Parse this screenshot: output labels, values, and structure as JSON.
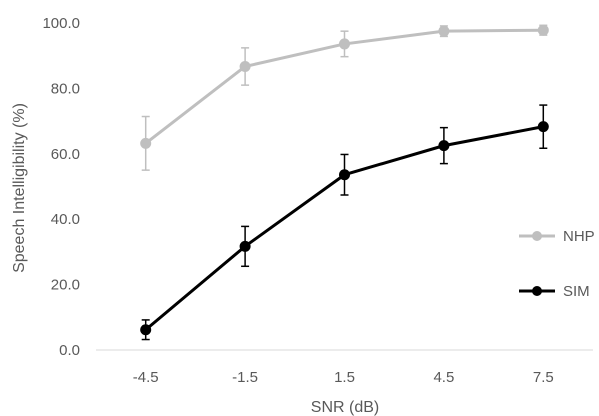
{
  "chart_data": {
    "type": "line",
    "title": "",
    "xlabel": "SNR (dB)",
    "ylabel": "Speech Intelligibility (%)",
    "categories": [
      "-4.5",
      "-1.5",
      "1.5",
      "4.5",
      "7.5"
    ],
    "ylim": [
      0,
      100
    ],
    "y_ticks": [
      "0.0",
      "20.0",
      "40.0",
      "60.0",
      "80.0",
      "100.0"
    ],
    "grid": false,
    "legend_position": "right",
    "series": [
      {
        "name": "NHP",
        "color": "#bfbfbf",
        "values": [
          63.2,
          86.7,
          93.6,
          97.5,
          97.8
        ],
        "errors": [
          8.2,
          5.7,
          3.9,
          1.6,
          1.5
        ]
      },
      {
        "name": "SIM",
        "color": "#000000",
        "values": [
          6.2,
          31.7,
          53.6,
          62.5,
          68.3
        ],
        "errors": [
          3.0,
          6.1,
          6.2,
          5.5,
          6.6
        ]
      }
    ]
  }
}
